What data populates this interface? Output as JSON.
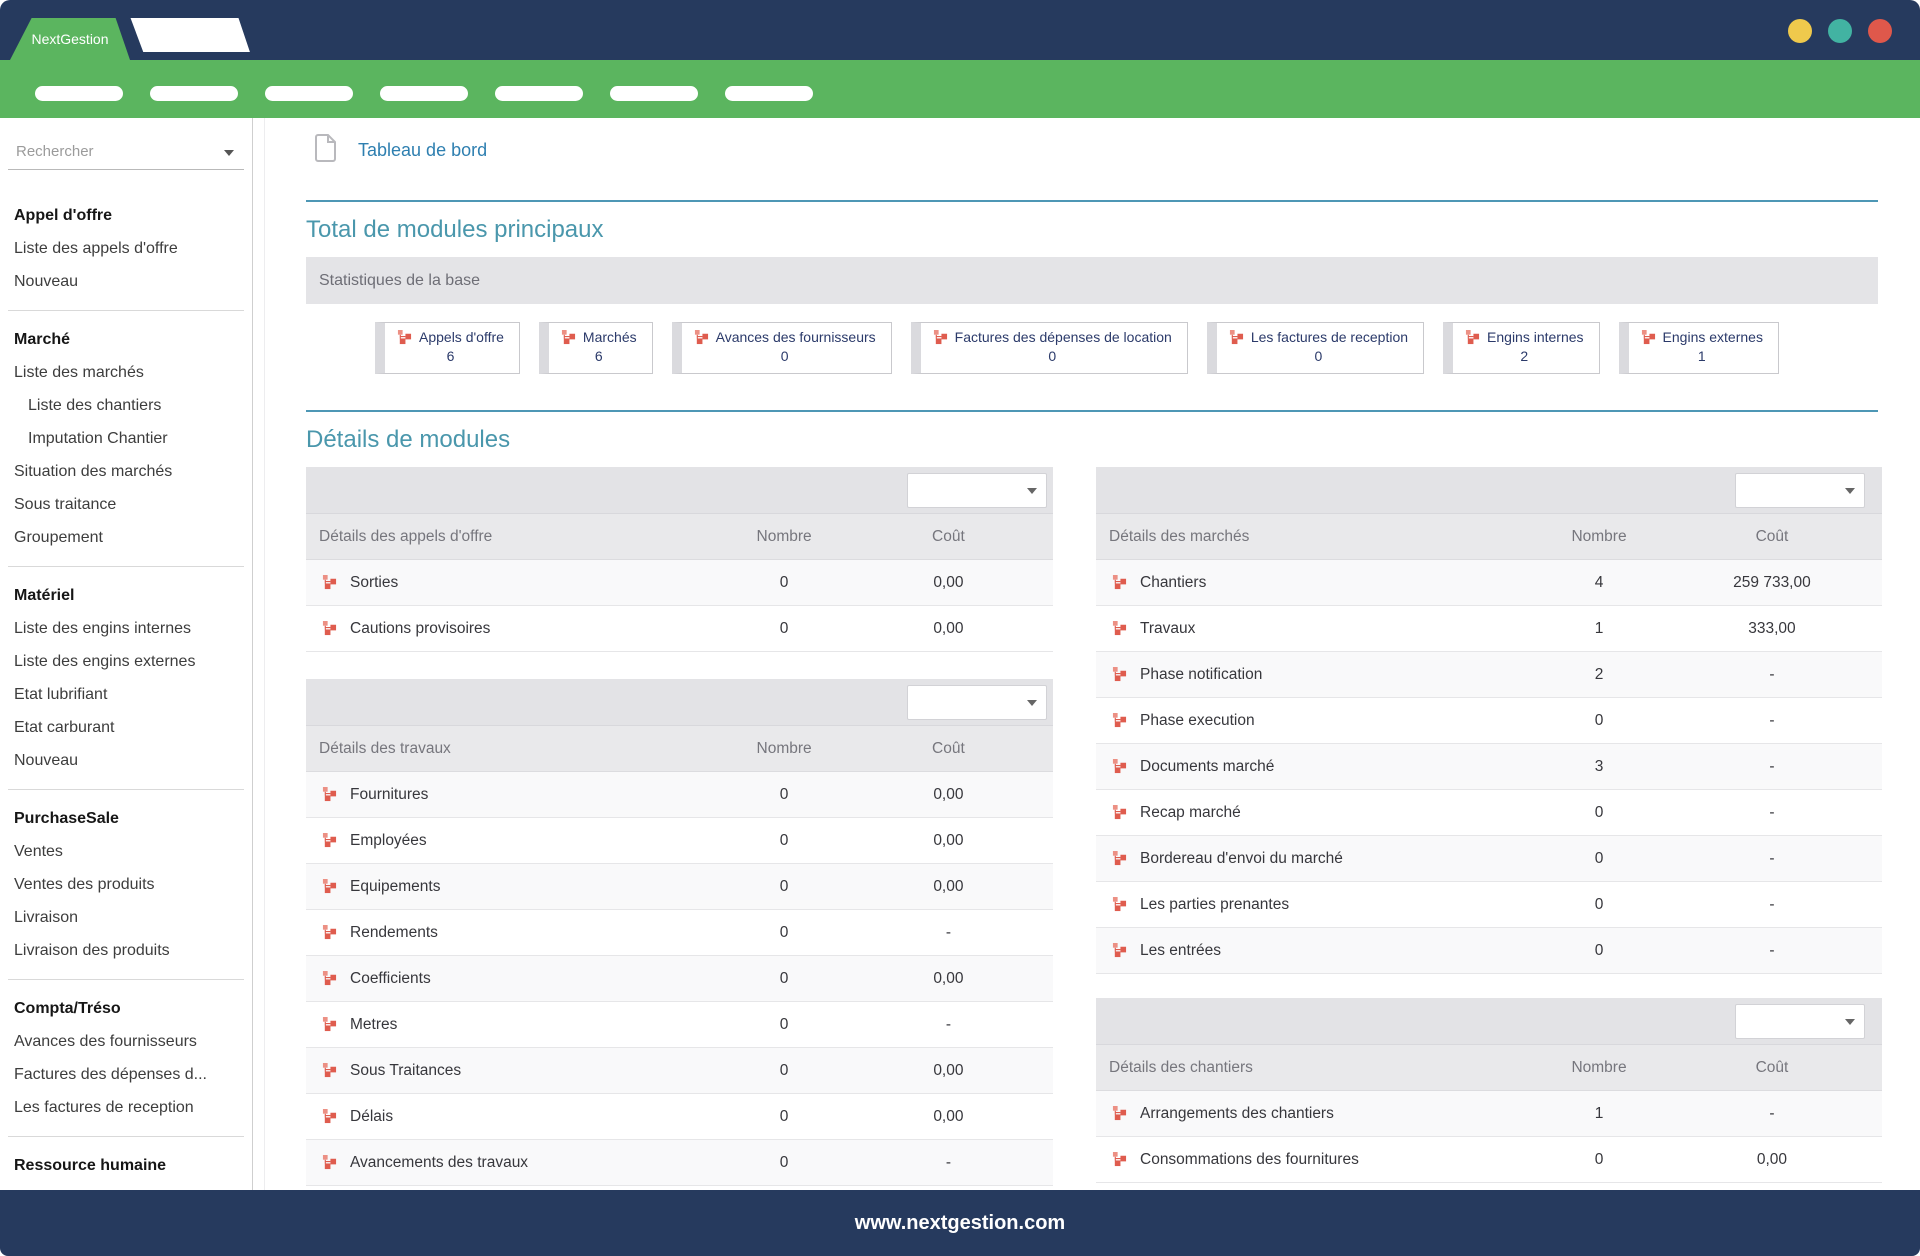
{
  "window": {
    "brand": "NextGestion",
    "controls": [
      {
        "name": "minimize",
        "color": "#efc94c"
      },
      {
        "name": "restore",
        "color": "#42b3a2"
      },
      {
        "name": "close",
        "color": "#df584b"
      }
    ]
  },
  "nav": {
    "pill_count": 7
  },
  "sidebar": {
    "search_placeholder": "Rechercher",
    "sections": [
      {
        "title": "Appel d'offre",
        "items": [
          {
            "label": "Liste des appels d'offre"
          },
          {
            "label": "Nouveau"
          }
        ]
      },
      {
        "title": "Marché",
        "items": [
          {
            "label": "Liste des marchés"
          },
          {
            "label": "Liste des chantiers",
            "indent": true
          },
          {
            "label": "Imputation Chantier",
            "indent": true
          },
          {
            "label": "Situation des marchés"
          },
          {
            "label": "Sous traitance"
          },
          {
            "label": "Groupement"
          }
        ]
      },
      {
        "title": "Matériel",
        "items": [
          {
            "label": "Liste des engins internes"
          },
          {
            "label": "Liste des engins externes"
          },
          {
            "label": "Etat lubrifiant"
          },
          {
            "label": "Etat carburant"
          },
          {
            "label": "Nouveau"
          }
        ]
      },
      {
        "title": "PurchaseSale",
        "items": [
          {
            "label": "Ventes"
          },
          {
            "label": "Ventes des produits"
          },
          {
            "label": "Livraison"
          },
          {
            "label": "Livraison des produits"
          }
        ]
      },
      {
        "title": "Compta/Tréso",
        "items": [
          {
            "label": "Avances des fournisseurs"
          },
          {
            "label": "Factures des dépenses d..."
          },
          {
            "label": "Les factures de reception"
          }
        ]
      },
      {
        "title": "Ressource humaine",
        "items": []
      }
    ]
  },
  "page": {
    "title": "Tableau de bord"
  },
  "totals_section": {
    "title": "Total de modules principaux",
    "band_label": "Statistiques de la base",
    "cards": [
      {
        "label": "Appels d'offre",
        "value": "6"
      },
      {
        "label": "Marchés",
        "value": "6"
      },
      {
        "label": "Avances des fournisseurs",
        "value": "0"
      },
      {
        "label": "Factures des dépenses de location",
        "value": "0"
      },
      {
        "label": "Les factures de reception",
        "value": "0"
      },
      {
        "label": "Engins internes",
        "value": "2"
      },
      {
        "label": "Engins externes",
        "value": "1"
      }
    ]
  },
  "details_section": {
    "title": "Détails de modules",
    "tables": [
      {
        "name": "appels-offre",
        "title": "Détails des appels d'offre",
        "columns": {
          "nombre": "Nombre",
          "cout": "Coût"
        },
        "rows": [
          {
            "label": "Sorties",
            "nombre": "0",
            "cout": "0,00"
          },
          {
            "label": "Cautions provisoires",
            "nombre": "0",
            "cout": "0,00"
          }
        ]
      },
      {
        "name": "travaux",
        "title": "Détails des travaux",
        "columns": {
          "nombre": "Nombre",
          "cout": "Coût"
        },
        "rows": [
          {
            "label": "Fournitures",
            "nombre": "0",
            "cout": "0,00"
          },
          {
            "label": "Employées",
            "nombre": "0",
            "cout": "0,00"
          },
          {
            "label": "Equipements",
            "nombre": "0",
            "cout": "0,00"
          },
          {
            "label": "Rendements",
            "nombre": "0",
            "cout": "-"
          },
          {
            "label": "Coefficients",
            "nombre": "0",
            "cout": "0,00"
          },
          {
            "label": "Metres",
            "nombre": "0",
            "cout": "-"
          },
          {
            "label": "Sous Traitances",
            "nombre": "0",
            "cout": "0,00"
          },
          {
            "label": "Délais",
            "nombre": "0",
            "cout": "0,00"
          },
          {
            "label": "Avancements des travaux",
            "nombre": "0",
            "cout": "-"
          }
        ]
      },
      {
        "name": "marches",
        "title": "Détails des marchés",
        "columns": {
          "nombre": "Nombre",
          "cout": "Coût"
        },
        "rows": [
          {
            "label": "Chantiers",
            "nombre": "4",
            "cout": "259 733,00"
          },
          {
            "label": "Travaux",
            "nombre": "1",
            "cout": "333,00"
          },
          {
            "label": "Phase notification",
            "nombre": "2",
            "cout": "-"
          },
          {
            "label": "Phase execution",
            "nombre": "0",
            "cout": "-"
          },
          {
            "label": "Documents marché",
            "nombre": "3",
            "cout": "-"
          },
          {
            "label": "Recap marché",
            "nombre": "0",
            "cout": "-"
          },
          {
            "label": "Bordereau d'envoi du marché",
            "nombre": "0",
            "cout": "-"
          },
          {
            "label": "Les parties prenantes",
            "nombre": "0",
            "cout": "-"
          },
          {
            "label": "Les entrées",
            "nombre": "0",
            "cout": "-"
          }
        ]
      },
      {
        "name": "chantiers",
        "title": "Détails des chantiers",
        "columns": {
          "nombre": "Nombre",
          "cout": "Coût"
        },
        "rows": [
          {
            "label": "Arrangements des chantiers",
            "nombre": "1",
            "cout": "-"
          },
          {
            "label": "Consommations des fournitures",
            "nombre": "0",
            "cout": "0,00"
          }
        ]
      }
    ]
  },
  "footer": {
    "url": "www.nextgestion.com"
  },
  "colors": {
    "top_bar": "#263a5e",
    "accent_green": "#5bb55f",
    "title_blue": "#2e7fb0",
    "section_teal": "#4a97ac",
    "icon_coral": "#df5c4e"
  }
}
